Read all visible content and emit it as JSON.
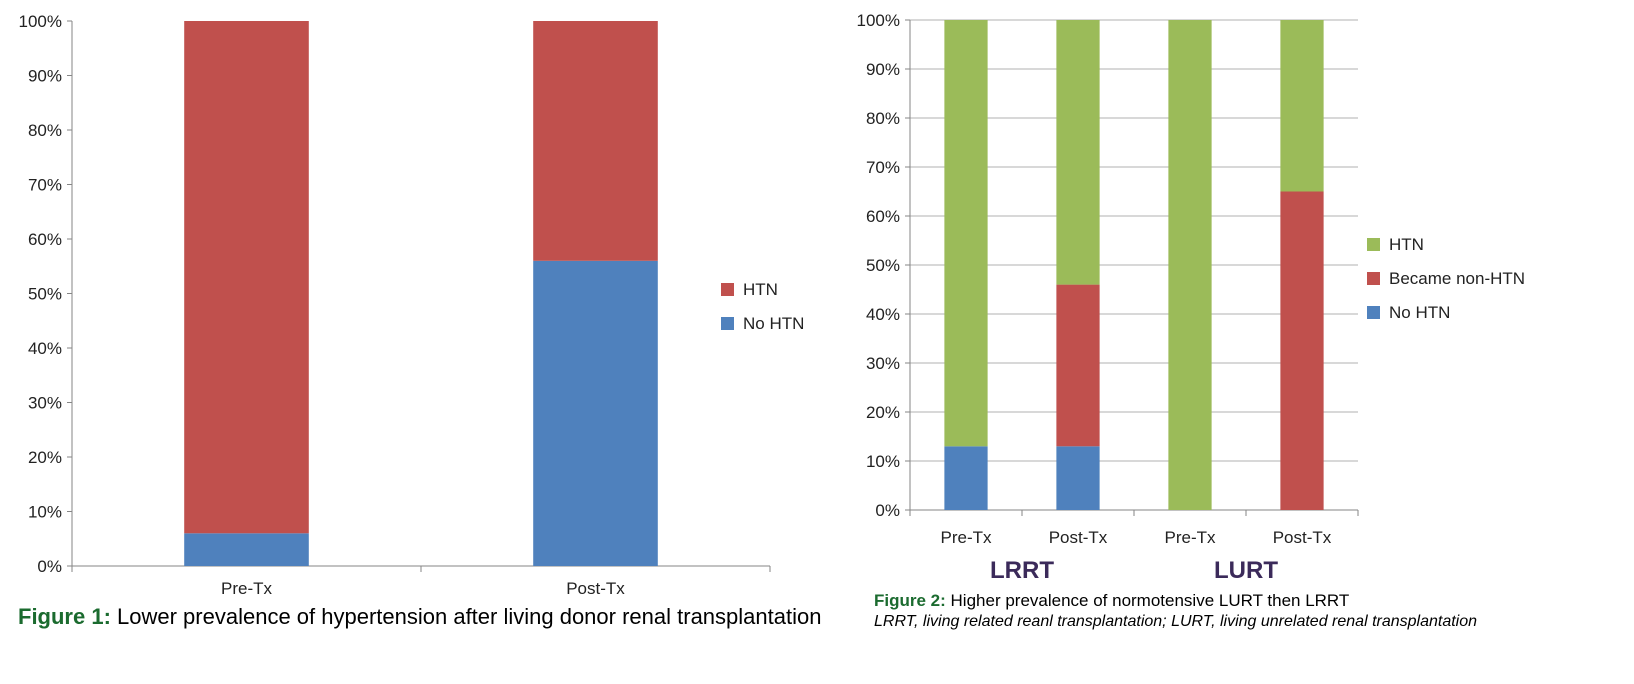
{
  "chart_data": [
    {
      "type": "bar",
      "stacked": true,
      "percent": true,
      "categories": [
        "Pre-Tx",
        "Post-Tx"
      ],
      "series": [
        {
          "name": "No HTN",
          "values": [
            6,
            56
          ],
          "color": "#4f81bd"
        },
        {
          "name": "HTN",
          "values": [
            94,
            44
          ],
          "color": "#c0504d"
        }
      ],
      "ylim": [
        0,
        100
      ],
      "yticks": [
        "0%",
        "10%",
        "20%",
        "30%",
        "40%",
        "50%",
        "60%",
        "70%",
        "80%",
        "90%",
        "100%"
      ],
      "legend": "right",
      "grid": false,
      "caption_label": "Figure 1:",
      "caption_text": " Lower prevalence of hypertension after living donor renal transplantation"
    },
    {
      "type": "bar",
      "stacked": true,
      "percent": true,
      "categories": [
        "Pre-Tx",
        "Post-Tx",
        "Pre-Tx",
        "Post-Tx"
      ],
      "groups": [
        "LRRT",
        "LURT"
      ],
      "series": [
        {
          "name": "No HTN",
          "values": [
            13,
            13,
            0,
            0
          ],
          "color": "#4f81bd"
        },
        {
          "name": "Became non-HTN",
          "values": [
            0,
            33,
            0,
            65
          ],
          "color": "#c0504d"
        },
        {
          "name": "HTN",
          "values": [
            87,
            54,
            100,
            35
          ],
          "color": "#9bbb59"
        }
      ],
      "ylim": [
        0,
        100
      ],
      "yticks": [
        "0%",
        "10%",
        "20%",
        "30%",
        "40%",
        "50%",
        "60%",
        "70%",
        "80%",
        "90%",
        "100%"
      ],
      "legend": "right",
      "grid": true,
      "caption_label": "Figure 2:",
      "caption_text": " Higher prevalence of normotensive LURT then LRRT",
      "caption_sub": "LRRT, living related reanl transplantation; LURT, living unrelated renal transplantation"
    }
  ]
}
